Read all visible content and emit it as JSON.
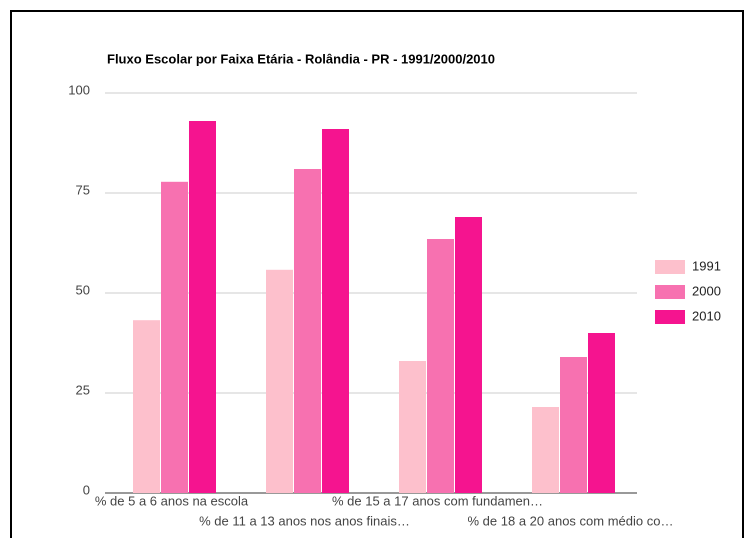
{
  "chart_data": {
    "type": "bar",
    "title": "Fluxo Escolar por Faixa Etária - Rolândia - PR - 1991/2000/2010",
    "categories": [
      "% de 5 a 6 anos na escola",
      "% de 11 a 13 anos nos anos finais…",
      "% de 15 a 17 anos com fundamen…",
      "% de 18 a 20 anos com médio co…"
    ],
    "series": [
      {
        "name": "1991",
        "color": "#fdc0cc",
        "values": [
          43.2,
          55.8,
          33,
          21.5
        ]
      },
      {
        "name": "2000",
        "color": "#f771b0",
        "values": [
          77.8,
          81,
          63.5,
          34
        ]
      },
      {
        "name": "2010",
        "color": "#f5148f",
        "values": [
          93,
          91,
          69,
          40
        ]
      }
    ],
    "ylim": [
      0,
      100
    ],
    "yticks": [
      0,
      25,
      50,
      75,
      100
    ],
    "grid": true,
    "legend": "right"
  }
}
